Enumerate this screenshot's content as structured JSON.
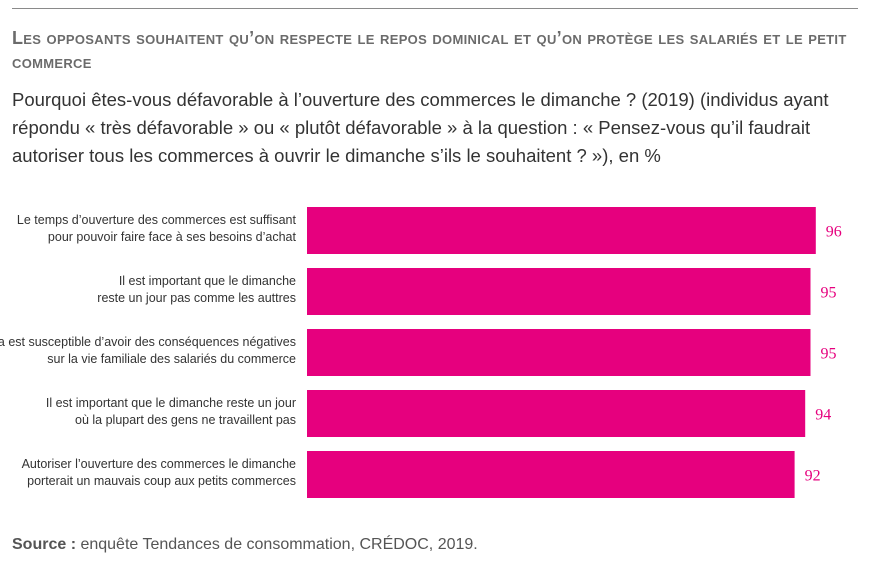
{
  "title": "Les opposants souhaitent qu’on respecte le repos dominical et qu’on protège les salariés et le petit commerce",
  "subtitle": "Pourquoi êtes-vous défavorable à l’ouverture des commerces le dimanche ? (2019) (individus ayant répondu « très défavorable » ou « plutôt défavorable » à la question : « Pensez-vous qu’il faudrait autoriser tous les commerces à ouvrir le dimanche s’ils le souhaitent ? »), en %",
  "source": {
    "label": "Source :",
    "text": " enquête Tendances de consommation, CRÉDOC, 2019."
  },
  "colors": {
    "bar": "#e6007e",
    "value_label": "#e6007e",
    "text": "#333333"
  },
  "chart_data": {
    "type": "bar",
    "orientation": "horizontal",
    "categories": [
      [
        "Le temps d’ouverture des commerces est suffisant",
        "pour pouvoir faire face à ses besoins d’achat"
      ],
      [
        "Il est important que le dimanche",
        "reste un jour pas comme les auttres"
      ],
      [
        "Cela est susceptible d’avoir des conséquences négatives",
        "sur la vie familiale des salariés du commerce"
      ],
      [
        "Il est important que le dimanche reste un jour",
        "où la plupart des gens ne travaillent pas"
      ],
      [
        "Autoriser l’ouverture des commerces le dimanche",
        "porterait un mauvais coup aux petits commerces"
      ]
    ],
    "values": [
      96,
      95,
      95,
      94,
      92
    ],
    "xlim": [
      0,
      100
    ],
    "grid": false,
    "legend": "none"
  }
}
